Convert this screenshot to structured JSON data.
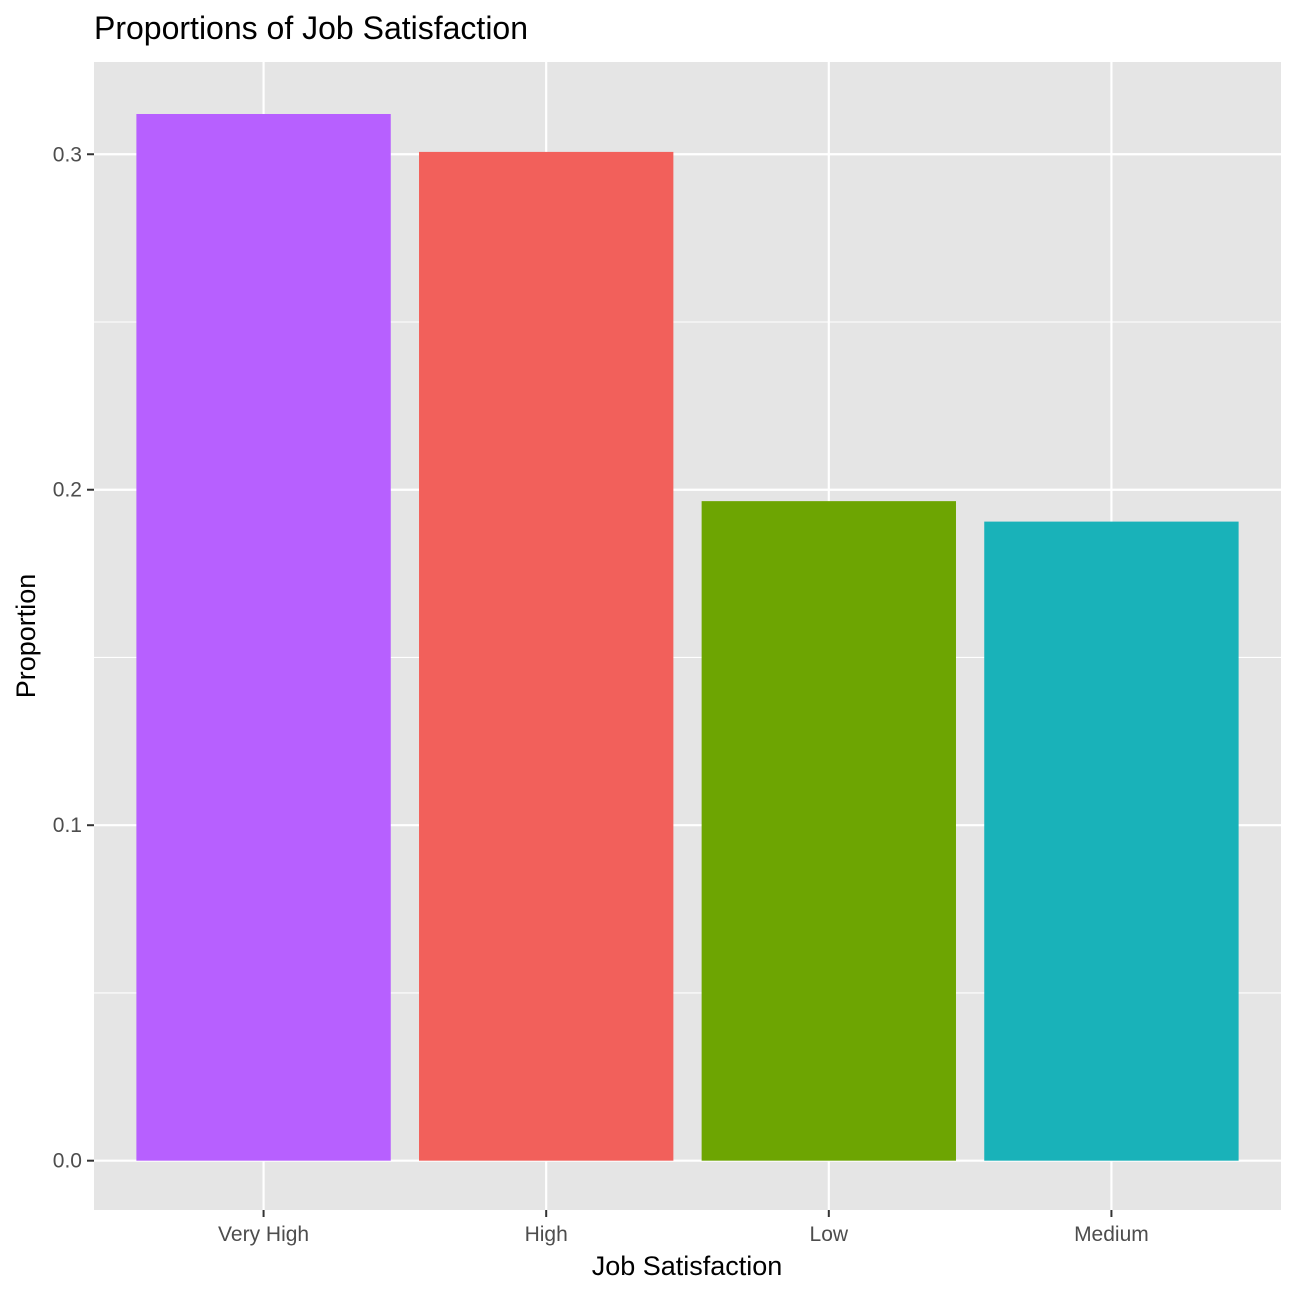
{
  "chart_data": {
    "type": "bar",
    "title": "Proportions of Job Satisfaction",
    "xlabel": "Job Satisfaction",
    "ylabel": "Proportion",
    "categories": [
      "Very High",
      "High",
      "Low",
      "Medium"
    ],
    "values": [
      0.312,
      0.3007,
      0.1966,
      0.1905
    ],
    "colors": [
      "#B760FF",
      "#F2605B",
      "#6DA502",
      "#19B2B9"
    ],
    "ylim": [
      -0.0147,
      0.3275
    ],
    "yticks": [
      0.0,
      0.1,
      0.2,
      0.3
    ],
    "ytick_labels": [
      "0.0",
      "0.1",
      "0.2",
      "0.3"
    ],
    "grid": true,
    "legend": "none",
    "panel_background": "#E5E5E5",
    "grid_color": "#FFFFFF"
  }
}
